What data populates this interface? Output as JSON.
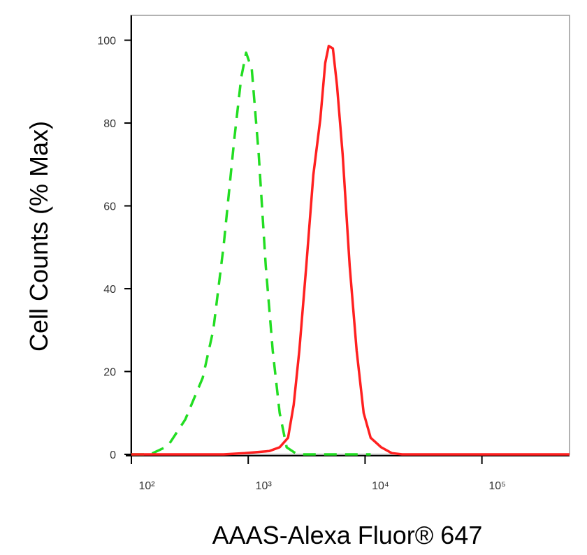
{
  "chart_data": {
    "type": "line",
    "log_x": true,
    "xlabel": "AAAS-Alexa Fluor® 647",
    "ylabel": "Cell Counts (% Max)",
    "xlim": [
      100,
      562000
    ],
    "ylim": [
      0,
      106
    ],
    "xticks": [
      {
        "value": 100,
        "label": "10²"
      },
      {
        "value": 1000,
        "label": "10³"
      },
      {
        "value": 10000,
        "label": "10⁴"
      },
      {
        "value": 100000,
        "label": "10⁵"
      }
    ],
    "yticks": [
      0,
      20,
      40,
      60,
      80,
      100
    ],
    "series": [
      {
        "color": "#22dd22",
        "dashed": true,
        "x": [
          100,
          145,
          205,
          289,
          408,
          502,
          617,
          759,
          871,
          959,
          1072,
          1230,
          1413,
          1622,
          1858,
          2133,
          2624,
          11160
        ],
        "values": [
          0,
          0,
          2,
          8.4,
          18.5,
          30,
          50.5,
          76,
          91,
          97,
          93,
          72.5,
          45.5,
          25,
          10,
          1.7,
          0,
          0
        ]
      },
      {
        "color": "#ff2020",
        "dashed": false,
        "x": [
          100,
          617,
          933,
          1514,
          1858,
          2193,
          2449,
          2735,
          3141,
          3606,
          4140,
          4560,
          4887,
          5309,
          5754,
          6427,
          7379,
          8472,
          9727,
          11160,
          13740,
          16900,
          20750,
          562000
        ],
        "values": [
          0,
          0,
          0.3,
          0.8,
          1.7,
          4,
          12,
          25,
          45.5,
          67.5,
          81,
          94.5,
          98.6,
          98,
          89,
          72.5,
          45.5,
          25,
          10,
          4,
          1.7,
          0.3,
          0,
          0
        ]
      }
    ]
  }
}
